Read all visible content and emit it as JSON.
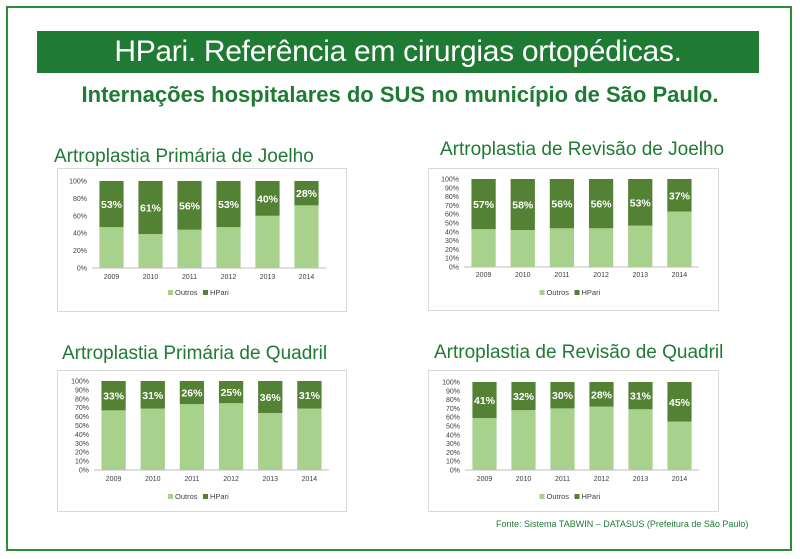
{
  "header": {
    "title": "HPari. Referência em cirurgias ortopédicas.",
    "subtitle": "Internações hospitalares do SUS no município de São Paulo."
  },
  "colors": {
    "outros": "#a9d18e",
    "hpari": "#548235",
    "brand": "#1f7a34"
  },
  "source": "Fonte: Sistema TABWIN – DATASUS (Prefeitura de São Paulo)",
  "chart_data": [
    {
      "type": "bar",
      "stacked": true,
      "percent": true,
      "title": "Artroplastia Primária de Joelho",
      "categories": [
        "2009",
        "2010",
        "2011",
        "2012",
        "2013",
        "2014"
      ],
      "series": [
        {
          "name": "Outros",
          "values": [
            47,
            39,
            44,
            47,
            60,
            72
          ]
        },
        {
          "name": "HPari",
          "values": [
            53,
            61,
            56,
            53,
            40,
            28
          ]
        }
      ],
      "data_labels": [
        "53%",
        "61%",
        "56%",
        "53%",
        "40%",
        "28%"
      ],
      "y_ticks": [
        "0%",
        "20%",
        "40%",
        "60%",
        "80%",
        "100%"
      ],
      "ylim": [
        0,
        100
      ],
      "legend": "bottom",
      "grid": false
    },
    {
      "type": "bar",
      "stacked": true,
      "percent": true,
      "title": "Artroplastia de Revisão de Joelho",
      "categories": [
        "2009",
        "2010",
        "2011",
        "2012",
        "2013",
        "2014"
      ],
      "series": [
        {
          "name": "Outros",
          "values": [
            43,
            42,
            44,
            44,
            47,
            63
          ]
        },
        {
          "name": "HPari",
          "values": [
            57,
            58,
            56,
            56,
            53,
            37
          ]
        }
      ],
      "data_labels": [
        "57%",
        "58%",
        "56%",
        "56%",
        "53%",
        "37%"
      ],
      "y_ticks": [
        "0%",
        "10%",
        "20%",
        "30%",
        "40%",
        "50%",
        "60%",
        "70%",
        "80%",
        "90%",
        "100%"
      ],
      "ylim": [
        0,
        100
      ],
      "legend": "bottom",
      "grid": false
    },
    {
      "type": "bar",
      "stacked": true,
      "percent": true,
      "title": "Artroplastia Primária de Quadril",
      "categories": [
        "2009",
        "2010",
        "2011",
        "2012",
        "2013",
        "2014"
      ],
      "series": [
        {
          "name": "Outros",
          "values": [
            67,
            69,
            74,
            75,
            64,
            69
          ]
        },
        {
          "name": "HPari",
          "values": [
            33,
            31,
            26,
            25,
            36,
            31
          ]
        }
      ],
      "data_labels": [
        "33%",
        "31%",
        "26%",
        "25%",
        "36%",
        "31%"
      ],
      "y_ticks": [
        "0%",
        "10%",
        "20%",
        "30%",
        "40%",
        "50%",
        "60%",
        "70%",
        "80%",
        "90%",
        "100%"
      ],
      "ylim": [
        0,
        100
      ],
      "legend": "bottom",
      "grid": false
    },
    {
      "type": "bar",
      "stacked": true,
      "percent": true,
      "title": "Artroplastia de Revisão de Quadril",
      "categories": [
        "2009",
        "2010",
        "2011",
        "2012",
        "2013",
        "2014"
      ],
      "series": [
        {
          "name": "Outros",
          "values": [
            59,
            68,
            70,
            72,
            69,
            55
          ]
        },
        {
          "name": "HPari",
          "values": [
            41,
            32,
            30,
            28,
            31,
            45
          ]
        }
      ],
      "data_labels": [
        "41%",
        "32%",
        "30%",
        "28%",
        "31%",
        "45%"
      ],
      "y_ticks": [
        "0%",
        "10%",
        "20%",
        "30%",
        "40%",
        "50%",
        "60%",
        "70%",
        "80%",
        "90%",
        "100%"
      ],
      "ylim": [
        0,
        100
      ],
      "legend": "bottom",
      "grid": false
    }
  ]
}
